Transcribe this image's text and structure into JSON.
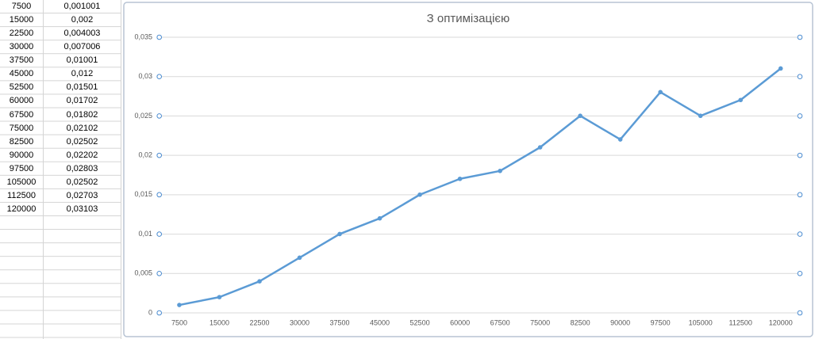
{
  "table": {
    "rows": [
      [
        "7500",
        "0,001001"
      ],
      [
        "15000",
        "0,002"
      ],
      [
        "22500",
        "0,004003"
      ],
      [
        "30000",
        "0,007006"
      ],
      [
        "37500",
        "0,01001"
      ],
      [
        "45000",
        "0,012"
      ],
      [
        "52500",
        "0,01501"
      ],
      [
        "60000",
        "0,01702"
      ],
      [
        "67500",
        "0,01802"
      ],
      [
        "75000",
        "0,02102"
      ],
      [
        "82500",
        "0,02502"
      ],
      [
        "90000",
        "0,02202"
      ],
      [
        "97500",
        "0,02803"
      ],
      [
        "105000",
        "0,02502"
      ],
      [
        "112500",
        "0,02703"
      ],
      [
        "120000",
        "0,03103"
      ]
    ]
  },
  "chart_data": {
    "type": "line",
    "title": "З оптимізацією",
    "categories": [
      "7500",
      "15000",
      "22500",
      "30000",
      "37500",
      "45000",
      "52500",
      "60000",
      "67500",
      "75000",
      "82500",
      "90000",
      "97500",
      "105000",
      "112500",
      "120000"
    ],
    "series": [
      {
        "color": "#5b9bd5",
        "values": [
          0.001001,
          0.002,
          0.004003,
          0.007006,
          0.01001,
          0.012,
          0.01501,
          0.01702,
          0.01802,
          0.02102,
          0.02502,
          0.02202,
          0.02803,
          0.02502,
          0.02703,
          0.03103
        ]
      }
    ],
    "ylim": [
      0,
      0.035
    ],
    "yticks": [
      0,
      {
        "value": 0.005,
        "label": "0,005"
      },
      {
        "value": 0.01,
        "label": "0,01"
      },
      {
        "value": 0.015,
        "label": "0,015"
      },
      {
        "value": 0.02,
        "label": "0,02"
      },
      {
        "value": 0.025,
        "label": "0,025"
      },
      {
        "value": 0.03,
        "label": "0,03"
      },
      {
        "value": 0.035,
        "label": "0,035"
      }
    ],
    "grid": true
  }
}
